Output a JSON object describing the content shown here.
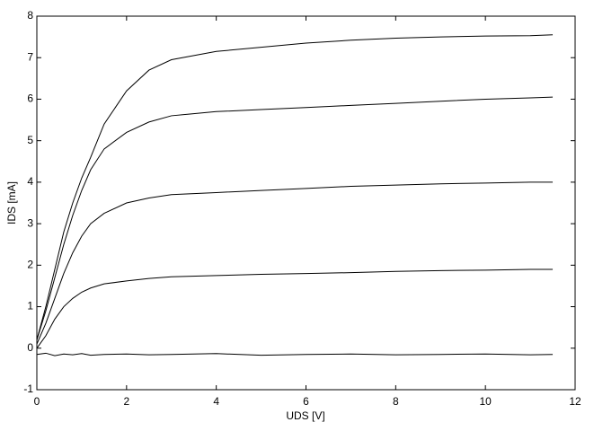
{
  "chart_data": {
    "type": "line",
    "xlabel": "UDS [V]",
    "ylabel": "IDS [mA]",
    "x": [
      0,
      0.2,
      0.4,
      0.6,
      0.8,
      1,
      1.2,
      1.5,
      2,
      2.5,
      3,
      4,
      5,
      6,
      7,
      8,
      9,
      10,
      11,
      11.5
    ],
    "series": [
      {
        "color": "#000000",
        "values": [
          0.2,
          1.0,
          1.9,
          2.8,
          3.5,
          4.1,
          4.6,
          5.4,
          6.2,
          6.7,
          6.95,
          7.15,
          7.25,
          7.35,
          7.42,
          7.47,
          7.5,
          7.52,
          7.53,
          7.55
        ]
      },
      {
        "color": "#000000",
        "values": [
          0.2,
          0.9,
          1.7,
          2.5,
          3.2,
          3.8,
          4.3,
          4.8,
          5.2,
          5.45,
          5.6,
          5.7,
          5.75,
          5.8,
          5.85,
          5.9,
          5.95,
          6.0,
          6.03,
          6.05
        ]
      },
      {
        "color": "#000000",
        "values": [
          0.1,
          0.6,
          1.2,
          1.8,
          2.3,
          2.7,
          3.0,
          3.25,
          3.5,
          3.62,
          3.7,
          3.75,
          3.8,
          3.85,
          3.9,
          3.93,
          3.96,
          3.98,
          4.0,
          4.0
        ]
      },
      {
        "color": "#000000",
        "values": [
          0.0,
          0.3,
          0.7,
          1.0,
          1.2,
          1.35,
          1.45,
          1.55,
          1.62,
          1.68,
          1.72,
          1.75,
          1.78,
          1.8,
          1.82,
          1.85,
          1.87,
          1.88,
          1.9,
          1.9
        ]
      },
      {
        "color": "#000000",
        "values": [
          -0.15,
          -0.12,
          -0.18,
          -0.14,
          -0.16,
          -0.13,
          -0.17,
          -0.15,
          -0.14,
          -0.16,
          -0.15,
          -0.13,
          -0.17,
          -0.15,
          -0.14,
          -0.16,
          -0.15,
          -0.14,
          -0.16,
          -0.15
        ]
      }
    ],
    "xlim": [
      0,
      12
    ],
    "xticks": [
      0,
      2,
      4,
      6,
      8,
      10,
      12
    ],
    "ylim": [
      -1,
      8
    ],
    "yticks": [
      -1,
      0,
      1,
      2,
      3,
      4,
      5,
      6,
      7,
      8
    ],
    "grid": false
  }
}
